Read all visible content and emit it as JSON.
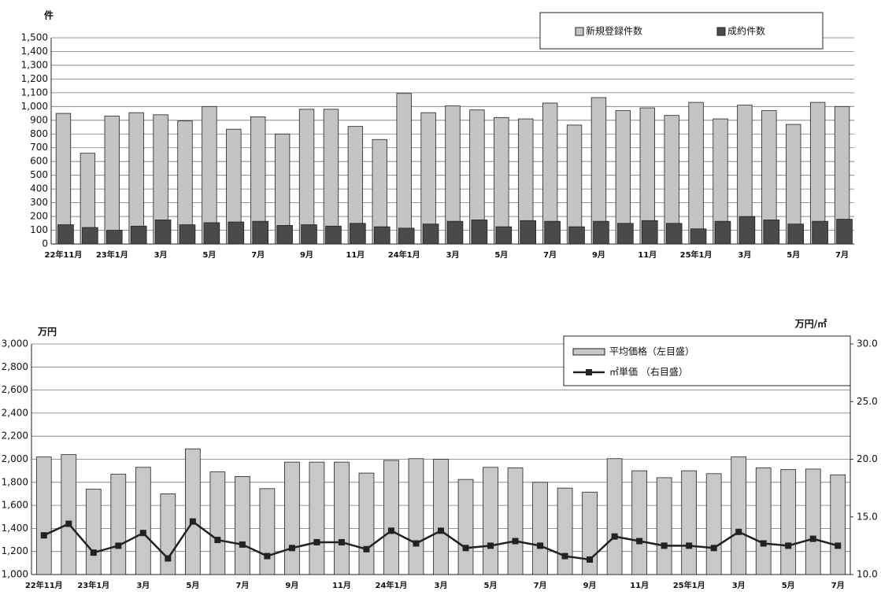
{
  "chart_data": [
    {
      "type": "bar",
      "y_unit": "件",
      "legend": "top-right",
      "grid": true,
      "categories": [
        "22年11月",
        null,
        "23年1月",
        null,
        "3月",
        null,
        "5月",
        null,
        "7月",
        null,
        "9月",
        null,
        "11月",
        null,
        "24年1月",
        null,
        "3月",
        null,
        "5月",
        null,
        "7月",
        null,
        "9月",
        null,
        "11月",
        null,
        "25年1月",
        null,
        "3月",
        null,
        "5月",
        null,
        "7月"
      ],
      "series": [
        {
          "name": "新規登録件数",
          "color": "#c4c4c4",
          "values": [
            950,
            660,
            930,
            955,
            940,
            895,
            1000,
            835,
            925,
            800,
            980,
            980,
            855,
            760,
            1095,
            955,
            1005,
            975,
            920,
            910,
            1025,
            865,
            1065,
            970,
            990,
            935,
            1030,
            910,
            1010,
            970,
            870,
            1030,
            1000
          ]
        },
        {
          "name": "成約件数",
          "color": "#4a4a4a",
          "values": [
            140,
            120,
            100,
            130,
            175,
            140,
            155,
            160,
            165,
            135,
            140,
            130,
            150,
            125,
            115,
            145,
            165,
            175,
            125,
            170,
            165,
            125,
            165,
            150,
            170,
            150,
            110,
            165,
            200,
            175,
            145,
            165,
            180
          ]
        }
      ],
      "ylim": [
        0,
        1500
      ],
      "yticks": [
        0,
        100,
        200,
        300,
        400,
        500,
        600,
        700,
        800,
        900,
        {
          "value": 1000,
          "label": "1,000"
        },
        {
          "value": 1100,
          "label": "1,100"
        },
        {
          "value": 1200,
          "label": "1,200"
        },
        {
          "value": 1300,
          "label": "1,300"
        },
        {
          "value": 1400,
          "label": "1,400"
        },
        {
          "value": 1500,
          "label": "1,500"
        }
      ]
    },
    {
      "type": "bar",
      "y_unit": "万円",
      "y2_unit": "万円/㎡",
      "legend": "top-right",
      "grid": true,
      "categories": [
        "22年11月",
        null,
        "23年1月",
        null,
        "3月",
        null,
        "5月",
        null,
        "7月",
        null,
        "9月",
        null,
        "11月",
        null,
        "24年1月",
        null,
        "3月",
        null,
        "5月",
        null,
        "7月",
        null,
        "9月",
        null,
        "11月",
        null,
        "25年1月",
        null,
        "3月",
        null,
        "5月",
        null,
        "7月"
      ],
      "series": [
        {
          "name": "平均価格（左目盛）",
          "color": "#c8c8c8",
          "values": [
            2020,
            2040,
            1740,
            1870,
            1930,
            1700,
            2090,
            1890,
            1850,
            1745,
            1975,
            1975,
            1975,
            1880,
            1990,
            2005,
            2000,
            1825,
            1930,
            1925,
            1800,
            1750,
            1715,
            2005,
            1900,
            1840,
            1900,
            1875,
            2020,
            1925,
            1910,
            1915,
            1865
          ]
        },
        {
          "name": "㎡単価 （右目盛）",
          "type": "line",
          "axis": "y2",
          "color": "#222222",
          "values": [
            13.4,
            14.4,
            11.9,
            12.5,
            13.6,
            11.4,
            14.6,
            13.0,
            12.6,
            11.6,
            12.3,
            12.8,
            12.8,
            12.2,
            13.8,
            12.7,
            13.8,
            12.3,
            12.5,
            12.9,
            12.5,
            11.6,
            11.3,
            13.3,
            12.9,
            12.5,
            12.5,
            12.3,
            13.7,
            12.7,
            12.5,
            13.1,
            12.5
          ]
        }
      ],
      "ylim": [
        1000,
        3000
      ],
      "yticks": [
        {
          "value": 1000,
          "label": "1,000"
        },
        {
          "value": 1200,
          "label": "1,200"
        },
        {
          "value": 1400,
          "label": "1,400"
        },
        {
          "value": 1600,
          "label": "1,600"
        },
        {
          "value": 1800,
          "label": "1,800"
        },
        {
          "value": 2000,
          "label": "2,000"
        },
        {
          "value": 2200,
          "label": "2,200"
        },
        {
          "value": 2400,
          "label": "2,400"
        },
        {
          "value": 2600,
          "label": "2,600"
        },
        {
          "value": 2800,
          "label": "2,800"
        },
        {
          "value": 3000,
          "label": "3,000"
        }
      ],
      "y2lim": [
        10,
        30
      ],
      "y2ticks": [
        {
          "value": 10,
          "label": "10.0"
        },
        {
          "value": 15,
          "label": "15.0"
        },
        {
          "value": 20,
          "label": "20.0"
        },
        {
          "value": 25,
          "label": "25.0"
        },
        {
          "value": 30,
          "label": "30.0"
        }
      ]
    }
  ]
}
